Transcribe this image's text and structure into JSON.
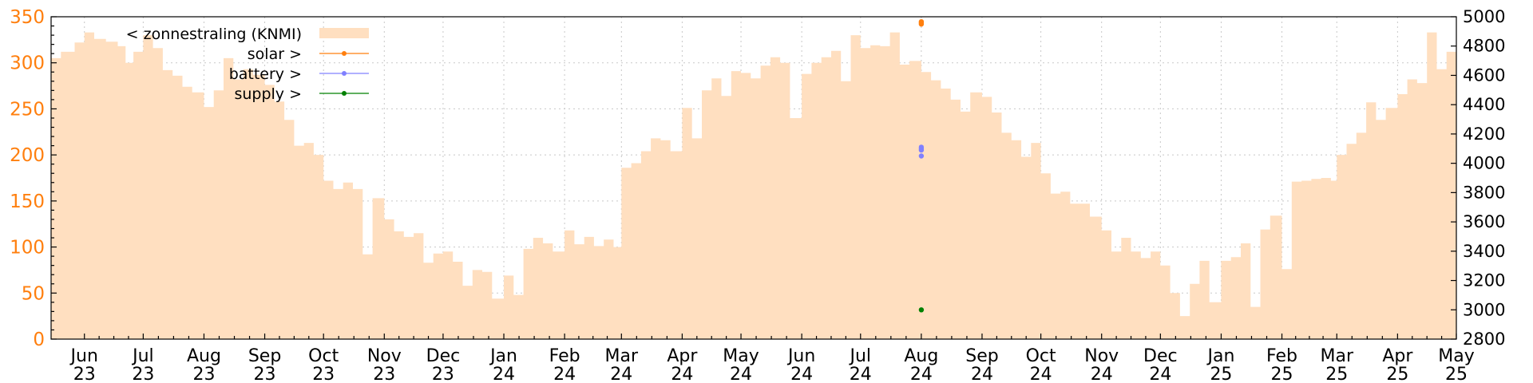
{
  "chart_data": {
    "type": "bar",
    "title": "",
    "xlabel": "",
    "ylabel_left": "",
    "ylabel_right": "",
    "y_left_range": [
      0,
      350
    ],
    "y_left_ticks": [
      0,
      50,
      100,
      150,
      200,
      250,
      300,
      350
    ],
    "y_right_range": [
      2800,
      5000
    ],
    "y_right_ticks": [
      2800,
      3000,
      3200,
      3400,
      3600,
      3800,
      4000,
      4200,
      4400,
      4600,
      4800,
      5000
    ],
    "x_range": [
      "2023-05-15",
      "2025-05-01"
    ],
    "x_ticks": [
      {
        "date": "2023-06-01",
        "month": "Jun",
        "year": "23"
      },
      {
        "date": "2023-07-01",
        "month": "Jul",
        "year": "23"
      },
      {
        "date": "2023-08-01",
        "month": "Aug",
        "year": "23"
      },
      {
        "date": "2023-09-01",
        "month": "Sep",
        "year": "23"
      },
      {
        "date": "2023-10-01",
        "month": "Oct",
        "year": "23"
      },
      {
        "date": "2023-11-01",
        "month": "Nov",
        "year": "23"
      },
      {
        "date": "2023-12-01",
        "month": "Dec",
        "year": "23"
      },
      {
        "date": "2024-01-01",
        "month": "Jan",
        "year": "24"
      },
      {
        "date": "2024-02-01",
        "month": "Feb",
        "year": "24"
      },
      {
        "date": "2024-03-01",
        "month": "Mar",
        "year": "24"
      },
      {
        "date": "2024-04-01",
        "month": "Apr",
        "year": "24"
      },
      {
        "date": "2024-05-01",
        "month": "May",
        "year": "24"
      },
      {
        "date": "2024-06-01",
        "month": "Jun",
        "year": "24"
      },
      {
        "date": "2024-07-01",
        "month": "Jul",
        "year": "24"
      },
      {
        "date": "2024-08-01",
        "month": "Aug",
        "year": "24"
      },
      {
        "date": "2024-09-01",
        "month": "Sep",
        "year": "24"
      },
      {
        "date": "2024-10-01",
        "month": "Oct",
        "year": "24"
      },
      {
        "date": "2024-11-01",
        "month": "Nov",
        "year": "24"
      },
      {
        "date": "2024-12-01",
        "month": "Dec",
        "year": "24"
      },
      {
        "date": "2025-01-01",
        "month": "Jan",
        "year": "25"
      },
      {
        "date": "2025-02-01",
        "month": "Feb",
        "year": "25"
      },
      {
        "date": "2025-03-01",
        "month": "Mar",
        "year": "25"
      },
      {
        "date": "2025-04-01",
        "month": "Apr",
        "year": "25"
      },
      {
        "date": "2025-05-01",
        "month": "May",
        "year": "25"
      }
    ],
    "grid": true,
    "legend_position": "top-left",
    "legend": [
      {
        "label": "< zonnestraling (KNMI)",
        "style": "area",
        "color": "#ffdfc0"
      },
      {
        "label": "solar >",
        "style": "line-point",
        "color": "#ff7f0e"
      },
      {
        "label": "battery >",
        "style": "line-point",
        "color": "#8080ff"
      },
      {
        "label": "supply >",
        "style": "line-point",
        "color": "#008000"
      }
    ],
    "series": [
      {
        "name": "< zonnestraling (KNMI)",
        "axis": "left",
        "type": "area",
        "color": "#ffdfc0",
        "points": [
          [
            "2023-05-15",
            305
          ],
          [
            "2023-05-20",
            312
          ],
          [
            "2023-05-27",
            322
          ],
          [
            "2023-06-01",
            333
          ],
          [
            "2023-06-06",
            326
          ],
          [
            "2023-06-12",
            323
          ],
          [
            "2023-06-18",
            318
          ],
          [
            "2023-06-22",
            300
          ],
          [
            "2023-06-26",
            312
          ],
          [
            "2023-07-01",
            330
          ],
          [
            "2023-07-06",
            316
          ],
          [
            "2023-07-11",
            292
          ],
          [
            "2023-07-16",
            286
          ],
          [
            "2023-07-21",
            274
          ],
          [
            "2023-07-26",
            268
          ],
          [
            "2023-08-01",
            252
          ],
          [
            "2023-08-06",
            270
          ],
          [
            "2023-08-11",
            305
          ],
          [
            "2023-08-16",
            282
          ],
          [
            "2023-08-21",
            293
          ],
          [
            "2023-08-26",
            287
          ],
          [
            "2023-09-01",
            276
          ],
          [
            "2023-09-06",
            258
          ],
          [
            "2023-09-11",
            238
          ],
          [
            "2023-09-16",
            210
          ],
          [
            "2023-09-21",
            213
          ],
          [
            "2023-09-26",
            200
          ],
          [
            "2023-10-01",
            172
          ],
          [
            "2023-10-06",
            163
          ],
          [
            "2023-10-11",
            170
          ],
          [
            "2023-10-16",
            163
          ],
          [
            "2023-10-21",
            92
          ],
          [
            "2023-10-26",
            153
          ],
          [
            "2023-11-01",
            130
          ],
          [
            "2023-11-06",
            117
          ],
          [
            "2023-11-11",
            111
          ],
          [
            "2023-11-16",
            115
          ],
          [
            "2023-11-21",
            83
          ],
          [
            "2023-11-26",
            93
          ],
          [
            "2023-12-01",
            95
          ],
          [
            "2023-12-06",
            84
          ],
          [
            "2023-12-11",
            58
          ],
          [
            "2023-12-16",
            75
          ],
          [
            "2023-12-21",
            73
          ],
          [
            "2023-12-26",
            44
          ],
          [
            "2024-01-01",
            69
          ],
          [
            "2024-01-06",
            48
          ],
          [
            "2024-01-11",
            98
          ],
          [
            "2024-01-16",
            110
          ],
          [
            "2024-01-21",
            104
          ],
          [
            "2024-01-26",
            95
          ],
          [
            "2024-02-01",
            118
          ],
          [
            "2024-02-06",
            103
          ],
          [
            "2024-02-11",
            111
          ],
          [
            "2024-02-16",
            101
          ],
          [
            "2024-02-21",
            108
          ],
          [
            "2024-02-26",
            100
          ],
          [
            "2024-03-01",
            186
          ],
          [
            "2024-03-06",
            191
          ],
          [
            "2024-03-11",
            204
          ],
          [
            "2024-03-16",
            218
          ],
          [
            "2024-03-21",
            216
          ],
          [
            "2024-03-26",
            204
          ],
          [
            "2024-04-01",
            251
          ],
          [
            "2024-04-06",
            218
          ],
          [
            "2024-04-11",
            270
          ],
          [
            "2024-04-16",
            283
          ],
          [
            "2024-04-21",
            264
          ],
          [
            "2024-04-26",
            291
          ],
          [
            "2024-05-01",
            289
          ],
          [
            "2024-05-06",
            283
          ],
          [
            "2024-05-11",
            297
          ],
          [
            "2024-05-16",
            306
          ],
          [
            "2024-05-21",
            300
          ],
          [
            "2024-05-26",
            240
          ],
          [
            "2024-06-01",
            288
          ],
          [
            "2024-06-06",
            300
          ],
          [
            "2024-06-11",
            306
          ],
          [
            "2024-06-16",
            313
          ],
          [
            "2024-06-21",
            280
          ],
          [
            "2024-06-26",
            330
          ],
          [
            "2024-07-01",
            316
          ],
          [
            "2024-07-06",
            319
          ],
          [
            "2024-07-11",
            318
          ],
          [
            "2024-07-16",
            333
          ],
          [
            "2024-07-21",
            298
          ],
          [
            "2024-07-26",
            302
          ],
          [
            "2024-08-01",
            290
          ],
          [
            "2024-08-06",
            281
          ],
          [
            "2024-08-11",
            272
          ],
          [
            "2024-08-16",
            260
          ],
          [
            "2024-08-21",
            247
          ],
          [
            "2024-08-26",
            268
          ],
          [
            "2024-09-01",
            263
          ],
          [
            "2024-09-06",
            246
          ],
          [
            "2024-09-11",
            224
          ],
          [
            "2024-09-16",
            216
          ],
          [
            "2024-09-21",
            198
          ],
          [
            "2024-09-26",
            213
          ],
          [
            "2024-10-01",
            180
          ],
          [
            "2024-10-06",
            158
          ],
          [
            "2024-10-11",
            160
          ],
          [
            "2024-10-16",
            147
          ],
          [
            "2024-10-21",
            147
          ],
          [
            "2024-10-26",
            133
          ],
          [
            "2024-11-01",
            118
          ],
          [
            "2024-11-06",
            95
          ],
          [
            "2024-11-11",
            110
          ],
          [
            "2024-11-16",
            95
          ],
          [
            "2024-11-21",
            88
          ],
          [
            "2024-11-26",
            95
          ],
          [
            "2024-12-01",
            80
          ],
          [
            "2024-12-06",
            50
          ],
          [
            "2024-12-11",
            25
          ],
          [
            "2024-12-16",
            60
          ],
          [
            "2024-12-21",
            85
          ],
          [
            "2024-12-26",
            40
          ],
          [
            "2025-01-01",
            85
          ],
          [
            "2025-01-06",
            89
          ],
          [
            "2025-01-11",
            104
          ],
          [
            "2025-01-16",
            35
          ],
          [
            "2025-01-21",
            119
          ],
          [
            "2025-01-26",
            134
          ],
          [
            "2025-02-01",
            76
          ],
          [
            "2025-02-06",
            171
          ],
          [
            "2025-02-11",
            172
          ],
          [
            "2025-02-16",
            174
          ],
          [
            "2025-02-21",
            175
          ],
          [
            "2025-02-26",
            172
          ],
          [
            "2025-03-01",
            200
          ],
          [
            "2025-03-06",
            212
          ],
          [
            "2025-03-11",
            224
          ],
          [
            "2025-03-16",
            257
          ],
          [
            "2025-03-21",
            238
          ],
          [
            "2025-03-26",
            251
          ],
          [
            "2025-04-01",
            266
          ],
          [
            "2025-04-06",
            282
          ],
          [
            "2025-04-11",
            278
          ],
          [
            "2025-04-16",
            333
          ],
          [
            "2025-04-21",
            293
          ],
          [
            "2025-04-26",
            312
          ],
          [
            "2025-05-01",
            337
          ]
        ]
      },
      {
        "name": "solar >",
        "axis": "right",
        "type": "scatter",
        "color": "#ff7f0e",
        "points": [
          [
            "2024-08-01",
            4966
          ],
          [
            "2024-08-01",
            4958
          ],
          [
            "2024-08-01",
            4950
          ]
        ]
      },
      {
        "name": "battery >",
        "axis": "right",
        "type": "scatter",
        "color": "#8080ff",
        "points": [
          [
            "2024-08-01",
            4110
          ],
          [
            "2024-08-01",
            4100
          ],
          [
            "2024-08-01",
            4090
          ],
          [
            "2024-08-01",
            4050
          ]
        ]
      },
      {
        "name": "supply >",
        "axis": "right",
        "type": "scatter",
        "color": "#008000",
        "points": [
          [
            "2024-08-01",
            3000
          ]
        ]
      }
    ]
  }
}
